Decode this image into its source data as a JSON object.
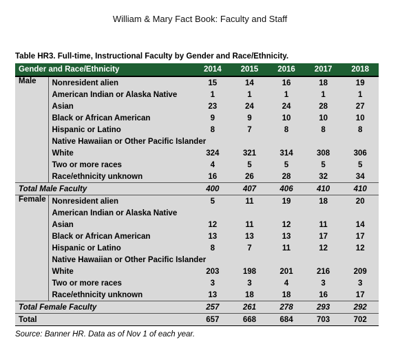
{
  "page_title": "William & Mary Fact Book: Faculty and Staff",
  "table_caption": "Table HR3.  Full-time, Instructional Faculty by Gender and Race/Ethnicity.",
  "header": {
    "label": "Gender and Race/Ethnicity",
    "years": [
      "2014",
      "2015",
      "2016",
      "2017",
      "2018"
    ]
  },
  "male": {
    "label": "Male",
    "rows": [
      {
        "race": "Nonresident alien",
        "values": [
          "15",
          "14",
          "16",
          "18",
          "19"
        ]
      },
      {
        "race": "American Indian or Alaska Native",
        "values": [
          "1",
          "1",
          "1",
          "1",
          "1"
        ]
      },
      {
        "race": "Asian",
        "values": [
          "23",
          "24",
          "24",
          "28",
          "27"
        ]
      },
      {
        "race": "Black or African American",
        "values": [
          "9",
          "9",
          "10",
          "10",
          "10"
        ]
      },
      {
        "race": "Hispanic or Latino",
        "values": [
          "8",
          "7",
          "8",
          "8",
          "8"
        ]
      },
      {
        "race": "Native Hawaiian or Other Pacific Islander",
        "values": [
          "",
          "",
          "",
          "",
          ""
        ]
      },
      {
        "race": "White",
        "values": [
          "324",
          "321",
          "314",
          "308",
          "306"
        ]
      },
      {
        "race": "Two or more races",
        "values": [
          "4",
          "5",
          "5",
          "5",
          "5"
        ]
      },
      {
        "race": "Race/ethnicity unknown",
        "values": [
          "16",
          "26",
          "28",
          "32",
          "34"
        ]
      }
    ],
    "total_label": "Total Male Faculty",
    "totals": [
      "400",
      "407",
      "406",
      "410",
      "410"
    ]
  },
  "female": {
    "label": "Female",
    "rows": [
      {
        "race": "Nonresident alien",
        "values": [
          "5",
          "11",
          "19",
          "18",
          "20"
        ]
      },
      {
        "race": "American Indian or Alaska Native",
        "values": [
          "",
          "",
          "",
          "",
          ""
        ]
      },
      {
        "race": "Asian",
        "values": [
          "12",
          "11",
          "12",
          "11",
          "14"
        ]
      },
      {
        "race": "Black or African American",
        "values": [
          "13",
          "13",
          "13",
          "17",
          "17"
        ]
      },
      {
        "race": "Hispanic or Latino",
        "values": [
          "8",
          "7",
          "11",
          "12",
          "12"
        ]
      },
      {
        "race": "Native Hawaiian or Other Pacific Islander",
        "values": [
          "",
          "",
          "",
          "",
          ""
        ]
      },
      {
        "race": "White",
        "values": [
          "203",
          "198",
          "201",
          "216",
          "209"
        ]
      },
      {
        "race": "Two or more races",
        "values": [
          "3",
          "3",
          "4",
          "3",
          "3"
        ]
      },
      {
        "race": "Race/ethnicity unknown",
        "values": [
          "13",
          "18",
          "18",
          "16",
          "17"
        ]
      }
    ],
    "total_label": "Total Female Faculty",
    "totals": [
      "257",
      "261",
      "278",
      "293",
      "292"
    ]
  },
  "grand_total": {
    "label": "Total",
    "values": [
      "657",
      "668",
      "684",
      "703",
      "702"
    ]
  },
  "source_note": "Source: Banner HR.  Data as of Nov 1 of each year.",
  "colors": {
    "header_bg": "#1e5f33",
    "row_bg": "#d9d9d9"
  }
}
